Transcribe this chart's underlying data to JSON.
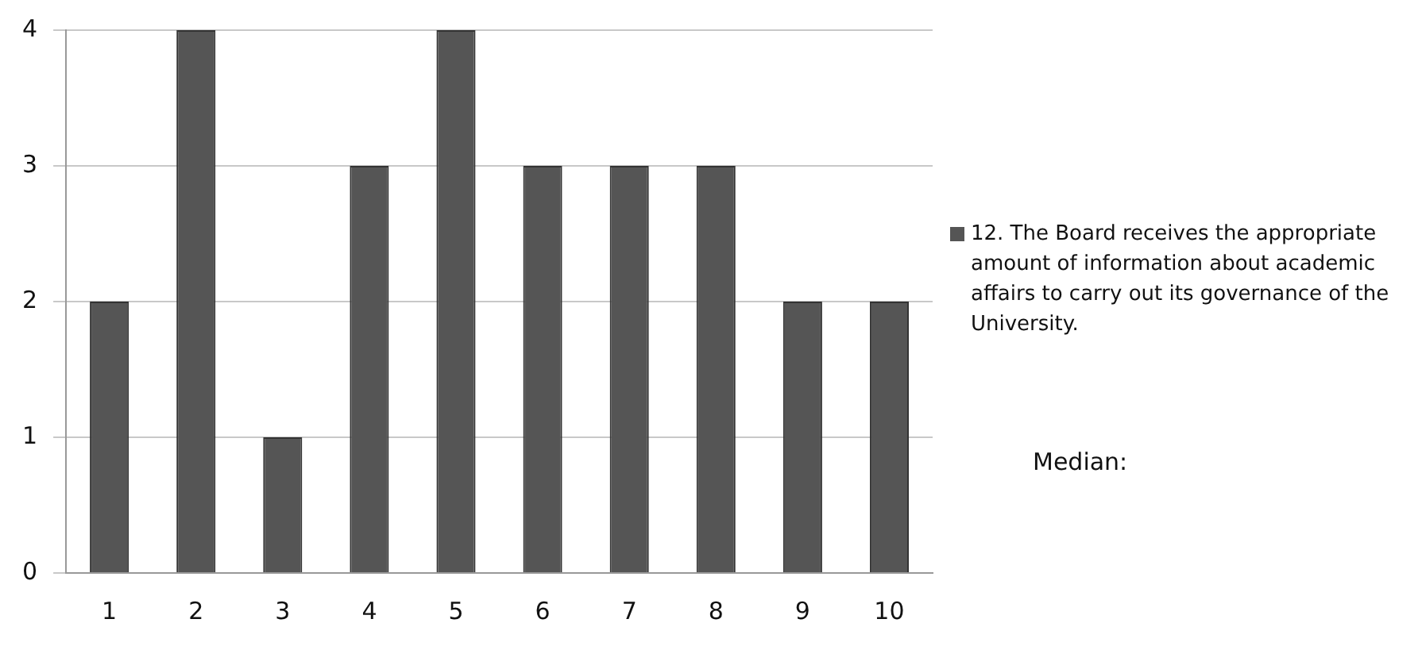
{
  "chart_data": {
    "type": "bar",
    "categories": [
      "1",
      "2",
      "3",
      "4",
      "5",
      "6",
      "7",
      "8",
      "9",
      "10"
    ],
    "series": [
      {
        "name": "12. The Board receives the appropriate amount of information about academic affairs to carry out its governance of the University.",
        "color": "#555555",
        "values": [
          2,
          4,
          1,
          3,
          4,
          3,
          3,
          3,
          2,
          2
        ]
      }
    ],
    "ylim": [
      0,
      4
    ],
    "yticks": [
      0,
      1,
      2,
      3,
      4
    ],
    "grid": "y",
    "legend": "right",
    "annotations": [
      "Median:"
    ]
  }
}
